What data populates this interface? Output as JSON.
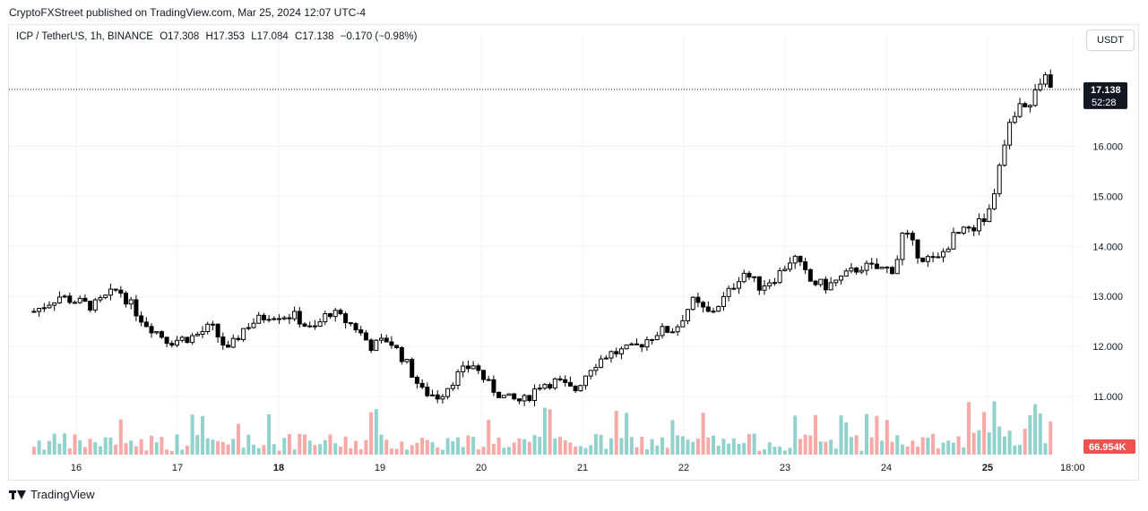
{
  "header": {
    "published_note": "CryptoFXStreet published on TradingView.com, Mar 25, 2024 12:07 UTC-4"
  },
  "legend": {
    "symbol": "ICP / TetherUS, 1h, BINANCE",
    "open_label": "O",
    "open": "17.308",
    "high_label": "H",
    "high": "17.353",
    "low_label": "L",
    "low": "17.084",
    "close_label": "C",
    "close": "17.138",
    "change": "−0.170 (−0.98%)"
  },
  "currency_button": "USDT",
  "last_price": {
    "value": "17.138",
    "countdown": "52:28"
  },
  "volume_label": "66.954K",
  "footer": {
    "brand": "TradingView"
  },
  "colors": {
    "up": "#26a69a",
    "down": "#ef5350",
    "candle": "#000000",
    "grid": "#f0f3fa",
    "text": "#131722"
  },
  "chart_data": {
    "type": "candlestick",
    "interval": "1h",
    "y_ticks": [
      "11.000",
      "12.000",
      "13.000",
      "14.000",
      "15.000",
      "16.000"
    ],
    "x_ticks": [
      "16",
      "17",
      "18",
      "19",
      "20",
      "21",
      "22",
      "23",
      "24",
      "25",
      "18:00"
    ],
    "ylim": [
      10.0,
      18.4
    ],
    "close_series": [
      {
        "x": "15 14:00",
        "y": 12.7
      },
      {
        "x": "15 20:00",
        "y": 13.0
      },
      {
        "x": "16 04:00",
        "y": 12.8
      },
      {
        "x": "16 10:00",
        "y": 13.15
      },
      {
        "x": "16 16:00",
        "y": 12.5
      },
      {
        "x": "16 22:00",
        "y": 12.1
      },
      {
        "x": "17 04:00",
        "y": 12.2
      },
      {
        "x": "17 08:00",
        "y": 12.4
      },
      {
        "x": "17 12:00",
        "y": 11.9
      },
      {
        "x": "17 16:00",
        "y": 12.4
      },
      {
        "x": "17 22:00",
        "y": 12.65
      },
      {
        "x": "18 04:00",
        "y": 12.6
      },
      {
        "x": "18 08:00",
        "y": 12.3
      },
      {
        "x": "18 12:00",
        "y": 12.7
      },
      {
        "x": "18 18:00",
        "y": 12.4
      },
      {
        "x": "18 22:00",
        "y": 12.0
      },
      {
        "x": "19 02:00",
        "y": 12.15
      },
      {
        "x": "19 06:00",
        "y": 11.7
      },
      {
        "x": "19 10:00",
        "y": 11.1
      },
      {
        "x": "19 14:00",
        "y": 11.0
      },
      {
        "x": "19 18:00",
        "y": 11.4
      },
      {
        "x": "19 22:00",
        "y": 11.65
      },
      {
        "x": "20 02:00",
        "y": 11.2
      },
      {
        "x": "20 06:00",
        "y": 10.95
      },
      {
        "x": "20 10:00",
        "y": 10.9
      },
      {
        "x": "20 14:00",
        "y": 11.25
      },
      {
        "x": "20 18:00",
        "y": 11.3
      },
      {
        "x": "20 22:00",
        "y": 11.1
      },
      {
        "x": "21 02:00",
        "y": 11.6
      },
      {
        "x": "21 06:00",
        "y": 11.85
      },
      {
        "x": "21 12:00",
        "y": 11.95
      },
      {
        "x": "21 18:00",
        "y": 12.3
      },
      {
        "x": "21 22:00",
        "y": 12.35
      },
      {
        "x": "22 02:00",
        "y": 12.9
      },
      {
        "x": "22 06:00",
        "y": 12.65
      },
      {
        "x": "22 10:00",
        "y": 13.0
      },
      {
        "x": "22 14:00",
        "y": 13.5
      },
      {
        "x": "22 18:00",
        "y": 13.2
      },
      {
        "x": "22 22:00",
        "y": 13.4
      },
      {
        "x": "23 02:00",
        "y": 13.8
      },
      {
        "x": "23 06:00",
        "y": 13.3
      },
      {
        "x": "23 10:00",
        "y": 13.2
      },
      {
        "x": "23 14:00",
        "y": 13.4
      },
      {
        "x": "23 18:00",
        "y": 13.6
      },
      {
        "x": "23 22:00",
        "y": 13.55
      },
      {
        "x": "24 02:00",
        "y": 13.55
      },
      {
        "x": "24 04:00",
        "y": 14.3
      },
      {
        "x": "24 08:00",
        "y": 13.8
      },
      {
        "x": "24 12:00",
        "y": 13.7
      },
      {
        "x": "24 16:00",
        "y": 14.2
      },
      {
        "x": "24 20:00",
        "y": 14.35
      },
      {
        "x": "25 00:00",
        "y": 14.6
      },
      {
        "x": "25 02:00",
        "y": 15.2
      },
      {
        "x": "25 04:00",
        "y": 16.1
      },
      {
        "x": "25 06:00",
        "y": 16.6
      },
      {
        "x": "25 08:00",
        "y": 16.9
      },
      {
        "x": "25 10:00",
        "y": 16.8
      },
      {
        "x": "25 12:00",
        "y": 17.2
      },
      {
        "x": "25 14:00",
        "y": 17.4
      },
      {
        "x": "25 16:00",
        "y": 17.138
      }
    ],
    "last_close": 17.138
  }
}
